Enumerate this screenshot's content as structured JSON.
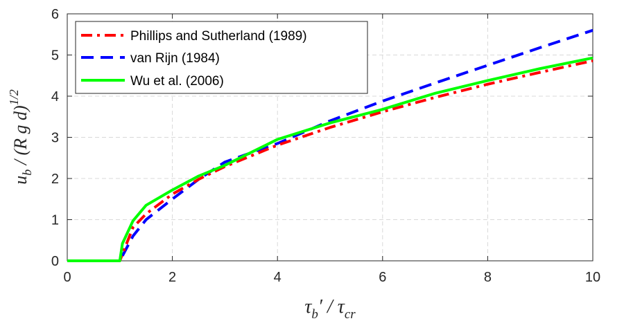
{
  "chart_data": {
    "type": "line",
    "xlabel": "τ_b′ / τ_cr",
    "ylabel": "u_b / (R g d)^(1/2)",
    "xlim": [
      0,
      10
    ],
    "ylim": [
      0,
      6
    ],
    "x_ticks": [
      0,
      2,
      4,
      6,
      8,
      10
    ],
    "y_ticks": [
      0,
      1,
      2,
      3,
      4,
      5,
      6
    ],
    "grid": true,
    "legend_position": "top-left",
    "series": [
      {
        "name": "Phillips and Sutherland (1989)",
        "color": "#ff0000",
        "style": "dash-dot",
        "x": [
          0,
          1,
          1.25,
          1.5,
          2,
          2.5,
          3,
          4,
          5,
          6,
          7,
          8,
          9,
          10
        ],
        "y": [
          0,
          0,
          0.81,
          1.14,
          1.62,
          1.98,
          2.29,
          2.81,
          3.24,
          3.62,
          3.97,
          4.29,
          4.58,
          4.86
        ]
      },
      {
        "name": "van Rijn (1984)",
        "color": "#0000ff",
        "style": "dashed",
        "x": [
          0,
          1,
          1.25,
          1.5,
          2,
          2.5,
          3,
          4,
          5,
          6,
          7,
          8,
          9,
          10
        ],
        "y": [
          0,
          0,
          0.6,
          1.0,
          1.5,
          1.98,
          2.4,
          2.85,
          3.4,
          3.88,
          4.32,
          4.75,
          5.18,
          5.6
        ]
      },
      {
        "name": "Wu et al. (2006)",
        "color": "#00ff00",
        "style": "solid",
        "x": [
          0,
          1,
          1.05,
          1.25,
          1.5,
          2,
          2.5,
          3,
          4,
          5,
          6,
          7,
          8,
          9,
          10
        ],
        "y": [
          0,
          0,
          0.42,
          0.97,
          1.35,
          1.72,
          2.06,
          2.32,
          2.95,
          3.35,
          3.68,
          4.07,
          4.38,
          4.67,
          4.93
        ]
      }
    ]
  }
}
